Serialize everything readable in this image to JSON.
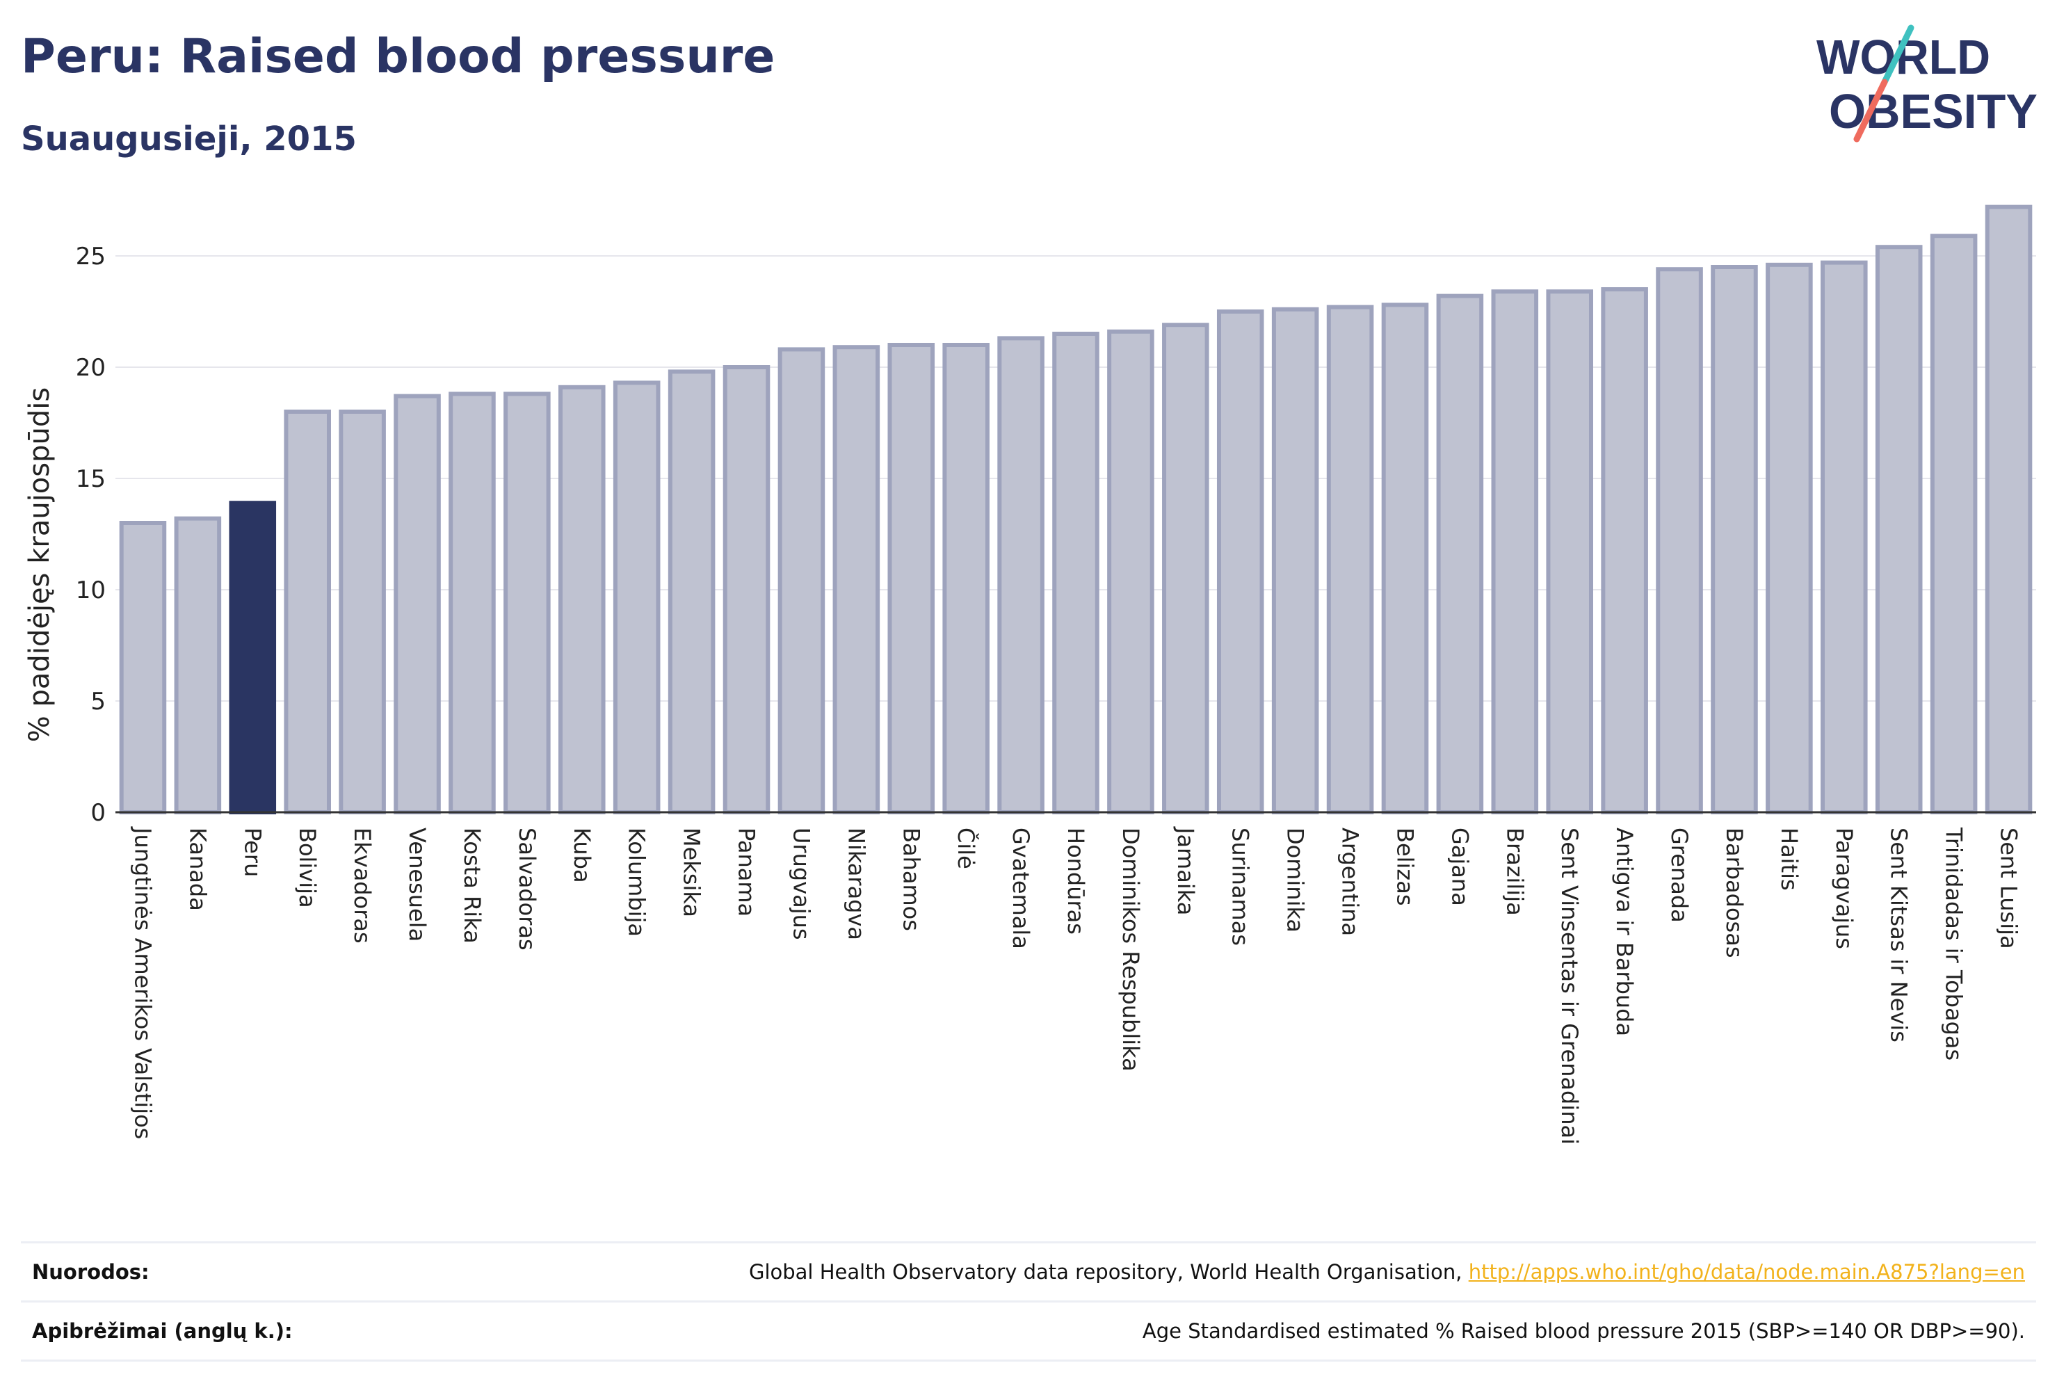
{
  "header": {
    "title": "Peru: Raised blood pressure",
    "subtitle": "Suaugusieji, 2015"
  },
  "logo": {
    "line1": "WORLD",
    "line2": "OBESITY",
    "accent_colors": [
      "#3fc1c0",
      "#ef6b5e"
    ],
    "text_color": "#2a3464"
  },
  "colors": {
    "bar": "#bfc2d1",
    "bar_outline": "#9ea3bd",
    "highlight": "#2a3562"
  },
  "chart_data": {
    "type": "bar",
    "title": "Peru: Raised blood pressure",
    "subtitle": "Suaugusieji, 2015",
    "ylabel": "% padidėjęs kraujospūdis",
    "xlabel": "",
    "ylim": [
      0,
      28
    ],
    "yticks": [
      0,
      5,
      10,
      15,
      20,
      25
    ],
    "grid": true,
    "highlight_category": "Peru",
    "categories": [
      "Jungtinės Amerikos Valstijos",
      "Kanada",
      "Peru",
      "Bolivija",
      "Ekvadoras",
      "Venesuela",
      "Kosta Rika",
      "Salvadoras",
      "Kuba",
      "Kolumbija",
      "Meksika",
      "Panama",
      "Urugvajus",
      "Nikaragva",
      "Bahamos",
      "Čilė",
      "Gvatemala",
      "Hondūras",
      "Dominikos Respublika",
      "Jamaika",
      "Surinamas",
      "Dominika",
      "Argentina",
      "Belizas",
      "Gajana",
      "Brazilija",
      "Sent Vinsentas ir Grenadinai",
      "Antigva ir Barbuda",
      "Grenada",
      "Barbadosas",
      "Haitis",
      "Paragvajus",
      "Sent Kitsas ir Nevis",
      "Trinidadas ir Tobagas",
      "Sent Lusija"
    ],
    "values": [
      13.0,
      13.2,
      13.9,
      18.0,
      18.0,
      18.7,
      18.8,
      18.8,
      19.1,
      19.3,
      19.8,
      20.0,
      20.8,
      20.9,
      21.0,
      21.0,
      21.3,
      21.5,
      21.6,
      21.9,
      22.5,
      22.6,
      22.7,
      22.8,
      23.2,
      23.4,
      23.4,
      23.5,
      24.4,
      24.5,
      24.6,
      24.7,
      25.4,
      25.9,
      27.2
    ]
  },
  "footer": {
    "sources_label": "Nuorodos:",
    "sources_text": "Global Health Observatory data repository, World Health Organisation, ",
    "sources_link": "http://apps.who.int/gho/data/node.main.A875?lang=en",
    "definitions_label": "Apibrėžimai (anglų k.):",
    "definitions_text": "Age Standardised estimated % Raised blood pressure 2015 (SBP>=140 OR DBP>=90)."
  }
}
